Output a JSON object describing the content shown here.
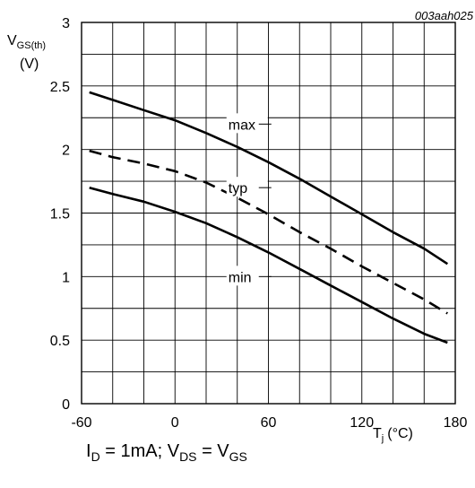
{
  "chart_data": {
    "type": "line",
    "code": "003aah025",
    "ylabel_main": "V",
    "ylabel_sub": "GS(th)",
    "ylabel_unit": "(V)",
    "xlabel_main": "T",
    "xlabel_sub": "j",
    "xlabel_unit": "(°C)",
    "xlim": [
      -60,
      180
    ],
    "ylim": [
      0,
      3
    ],
    "x_ticks": [
      -60,
      0,
      60,
      120,
      180
    ],
    "x_tick_labels": [
      "-60",
      "0",
      "60",
      "120",
      "180"
    ],
    "y_ticks": [
      0,
      0.5,
      1,
      1.5,
      2,
      2.5,
      3
    ],
    "y_tick_labels": [
      "0",
      "0.5",
      "1",
      "1.5",
      "2",
      "2.5",
      "3"
    ],
    "x_minor_step": 20,
    "y_minor_step": 0.25,
    "grid": true,
    "series": [
      {
        "name": "max",
        "dash": "solid",
        "x": [
          -55,
          -40,
          -20,
          0,
          20,
          40,
          60,
          80,
          100,
          120,
          140,
          160,
          175
        ],
        "y": [
          2.45,
          2.39,
          2.31,
          2.23,
          2.13,
          2.02,
          1.9,
          1.77,
          1.63,
          1.49,
          1.35,
          1.22,
          1.1
        ]
      },
      {
        "name": "typ",
        "dash": "dashed",
        "x": [
          -55,
          -40,
          -20,
          0,
          20,
          40,
          60,
          80,
          100,
          120,
          140,
          160,
          175
        ],
        "y": [
          1.99,
          1.94,
          1.89,
          1.83,
          1.74,
          1.62,
          1.49,
          1.35,
          1.22,
          1.08,
          0.95,
          0.82,
          0.71
        ]
      },
      {
        "name": "min",
        "dash": "solid",
        "x": [
          -55,
          -40,
          -20,
          0,
          20,
          40,
          60,
          80,
          100,
          120,
          140,
          160,
          175
        ],
        "y": [
          1.7,
          1.65,
          1.59,
          1.51,
          1.42,
          1.31,
          1.19,
          1.06,
          0.93,
          0.8,
          0.67,
          0.55,
          0.48
        ]
      }
    ],
    "labels": [
      {
        "text": "max",
        "x": 40,
        "y": 2.2,
        "series": "max"
      },
      {
        "text": "typ",
        "x": 40,
        "y": 1.7,
        "series": "typ"
      },
      {
        "text": "min",
        "x": 40,
        "y": 1.0,
        "series": "min"
      }
    ]
  },
  "caption": {
    "id_main": "I",
    "id_sub": "D",
    "middle": " = 1mA; V",
    "vds_sub": "DS",
    "eq": " = V",
    "vgs_sub": "GS"
  }
}
